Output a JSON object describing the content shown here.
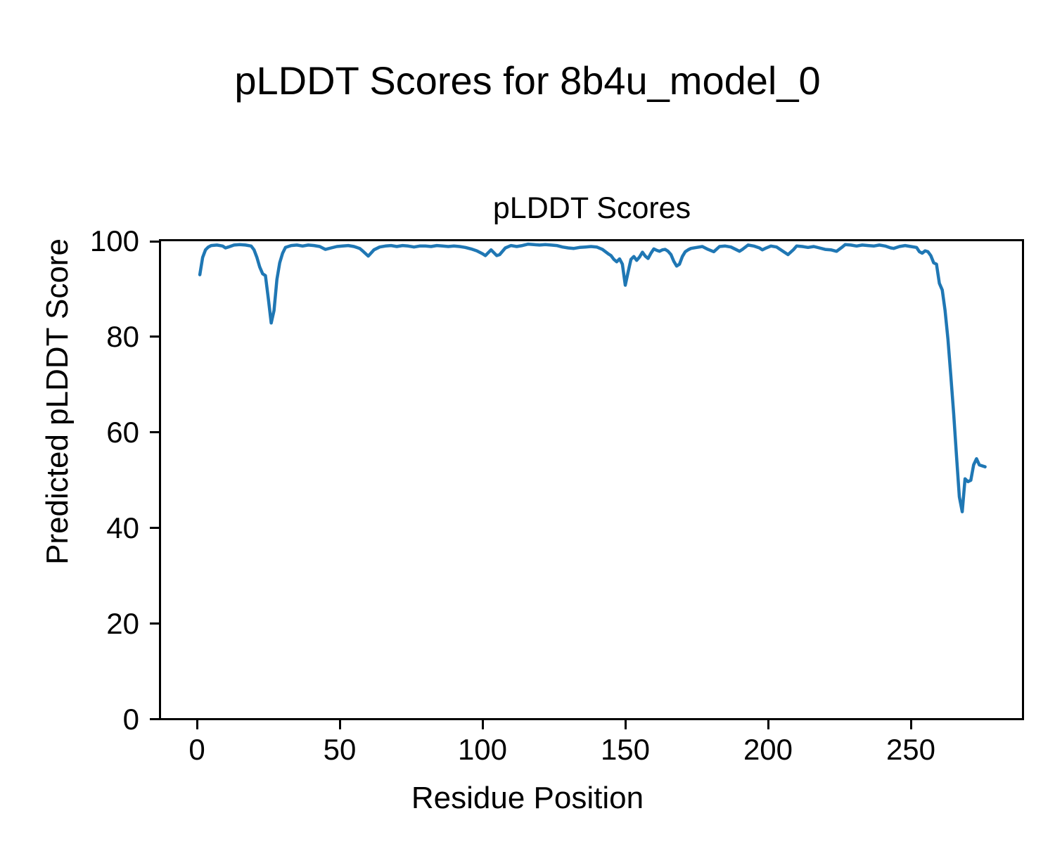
{
  "figure": {
    "suptitle": "pLDDT Scores for 8b4u_model_0",
    "axes_title": "pLDDT Scores",
    "xlabel": "Residue Position",
    "ylabel": "Predicted pLDDT Score"
  },
  "chart_data": {
    "type": "line",
    "suptitle": "pLDDT Scores for 8b4u_model_0",
    "title": "pLDDT Scores",
    "xlabel": "Residue Position",
    "ylabel": "Predicted pLDDT Score",
    "xlim": [
      -13,
      290
    ],
    "ylim": [
      0,
      100
    ],
    "x_ticks": [
      0,
      50,
      100,
      150,
      200,
      250
    ],
    "y_ticks": [
      0,
      20,
      40,
      60,
      80,
      100
    ],
    "grid": false,
    "legend": false,
    "line_color": "#1f77b4",
    "series": [
      {
        "name": "pLDDT",
        "points": [
          [
            1,
            93.0
          ],
          [
            2,
            96.6
          ],
          [
            3,
            98.2
          ],
          [
            4,
            98.8
          ],
          [
            5,
            99.1
          ],
          [
            7,
            99.2
          ],
          [
            9,
            99.0
          ],
          [
            10,
            98.6
          ],
          [
            11,
            98.8
          ],
          [
            13,
            99.2
          ],
          [
            15,
            99.3
          ],
          [
            17,
            99.2
          ],
          [
            19,
            99.0
          ],
          [
            20,
            98.2
          ],
          [
            21,
            96.6
          ],
          [
            22,
            94.6
          ],
          [
            23,
            93.2
          ],
          [
            24,
            92.8
          ],
          [
            25,
            88.0
          ],
          [
            26,
            82.9
          ],
          [
            27,
            85.5
          ],
          [
            28,
            92.0
          ],
          [
            29,
            95.5
          ],
          [
            30,
            97.5
          ],
          [
            31,
            98.7
          ],
          [
            33,
            99.1
          ],
          [
            35,
            99.2
          ],
          [
            37,
            99.0
          ],
          [
            39,
            99.2
          ],
          [
            41,
            99.1
          ],
          [
            43,
            98.9
          ],
          [
            45,
            98.3
          ],
          [
            47,
            98.6
          ],
          [
            49,
            98.9
          ],
          [
            51,
            99.0
          ],
          [
            53,
            99.1
          ],
          [
            55,
            98.9
          ],
          [
            57,
            98.5
          ],
          [
            58,
            98.0
          ],
          [
            60,
            96.9
          ],
          [
            62,
            98.2
          ],
          [
            64,
            98.8
          ],
          [
            66,
            99.0
          ],
          [
            68,
            99.1
          ],
          [
            70,
            98.9
          ],
          [
            72,
            99.1
          ],
          [
            74,
            99.0
          ],
          [
            76,
            98.8
          ],
          [
            78,
            99.0
          ],
          [
            80,
            99.0
          ],
          [
            82,
            98.9
          ],
          [
            84,
            99.1
          ],
          [
            86,
            99.0
          ],
          [
            88,
            98.9
          ],
          [
            90,
            99.0
          ],
          [
            92,
            98.9
          ],
          [
            94,
            98.7
          ],
          [
            96,
            98.4
          ],
          [
            98,
            98.0
          ],
          [
            100,
            97.4
          ],
          [
            101,
            97.0
          ],
          [
            103,
            98.2
          ],
          [
            105,
            97.0
          ],
          [
            106,
            97.2
          ],
          [
            108,
            98.6
          ],
          [
            110,
            99.1
          ],
          [
            112,
            98.9
          ],
          [
            114,
            99.1
          ],
          [
            116,
            99.4
          ],
          [
            118,
            99.3
          ],
          [
            120,
            99.2
          ],
          [
            122,
            99.3
          ],
          [
            124,
            99.2
          ],
          [
            126,
            99.1
          ],
          [
            128,
            98.8
          ],
          [
            130,
            98.6
          ],
          [
            132,
            98.5
          ],
          [
            134,
            98.7
          ],
          [
            136,
            98.8
          ],
          [
            138,
            98.9
          ],
          [
            140,
            98.8
          ],
          [
            142,
            98.3
          ],
          [
            144,
            97.4
          ],
          [
            145,
            97.0
          ],
          [
            146,
            96.2
          ],
          [
            147,
            95.7
          ],
          [
            148,
            96.3
          ],
          [
            149,
            95.2
          ],
          [
            150,
            90.8
          ],
          [
            151,
            93.6
          ],
          [
            152,
            96.2
          ],
          [
            153,
            96.8
          ],
          [
            154,
            96.0
          ],
          [
            155,
            96.7
          ],
          [
            156,
            97.7
          ],
          [
            157,
            96.9
          ],
          [
            158,
            96.4
          ],
          [
            159,
            97.5
          ],
          [
            160,
            98.4
          ],
          [
            161,
            98.1
          ],
          [
            162,
            97.9
          ],
          [
            163,
            98.2
          ],
          [
            164,
            98.3
          ],
          [
            165,
            97.9
          ],
          [
            166,
            97.2
          ],
          [
            167,
            95.8
          ],
          [
            168,
            94.8
          ],
          [
            169,
            95.2
          ],
          [
            170,
            96.8
          ],
          [
            171,
            97.8
          ],
          [
            172,
            98.2
          ],
          [
            173,
            98.5
          ],
          [
            175,
            98.7
          ],
          [
            177,
            98.9
          ],
          [
            179,
            98.3
          ],
          [
            181,
            97.8
          ],
          [
            183,
            98.9
          ],
          [
            185,
            99.0
          ],
          [
            187,
            98.8
          ],
          [
            189,
            98.2
          ],
          [
            190,
            97.9
          ],
          [
            191,
            98.3
          ],
          [
            193,
            99.2
          ],
          [
            195,
            99.0
          ],
          [
            197,
            98.6
          ],
          [
            198,
            98.2
          ],
          [
            199,
            98.5
          ],
          [
            201,
            99.0
          ],
          [
            203,
            98.8
          ],
          [
            205,
            98.0
          ],
          [
            207,
            97.2
          ],
          [
            209,
            98.3
          ],
          [
            210,
            99.0
          ],
          [
            212,
            98.9
          ],
          [
            214,
            98.7
          ],
          [
            216,
            98.9
          ],
          [
            218,
            98.6
          ],
          [
            220,
            98.3
          ],
          [
            222,
            98.2
          ],
          [
            224,
            97.9
          ],
          [
            226,
            98.8
          ],
          [
            227,
            99.3
          ],
          [
            229,
            99.2
          ],
          [
            231,
            99.0
          ],
          [
            233,
            99.2
          ],
          [
            235,
            99.1
          ],
          [
            237,
            99.0
          ],
          [
            239,
            99.2
          ],
          [
            241,
            99.0
          ],
          [
            243,
            98.6
          ],
          [
            244,
            98.5
          ],
          [
            246,
            98.9
          ],
          [
            248,
            99.1
          ],
          [
            250,
            98.9
          ],
          [
            252,
            98.7
          ],
          [
            253,
            97.8
          ],
          [
            254,
            97.5
          ],
          [
            255,
            98.0
          ],
          [
            256,
            97.8
          ],
          [
            257,
            97.0
          ],
          [
            258,
            95.5
          ],
          [
            259,
            95.2
          ],
          [
            260,
            91.2
          ],
          [
            261,
            89.8
          ],
          [
            262,
            85.5
          ],
          [
            263,
            79.5
          ],
          [
            264,
            72.0
          ],
          [
            265,
            64.0
          ],
          [
            266,
            55.0
          ],
          [
            267,
            46.5
          ],
          [
            268,
            43.4
          ],
          [
            269,
            50.3
          ],
          [
            270,
            49.7
          ],
          [
            271,
            50.0
          ],
          [
            272,
            53.2
          ],
          [
            273,
            54.5
          ],
          [
            274,
            53.2
          ],
          [
            275,
            53.0
          ],
          [
            276,
            52.8
          ]
        ]
      }
    ]
  }
}
